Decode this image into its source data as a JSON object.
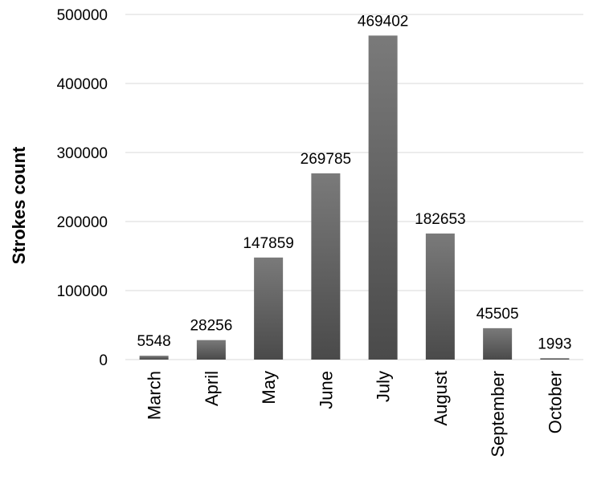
{
  "chart_data": {
    "type": "bar",
    "title": "",
    "xlabel": "",
    "ylabel": "Strokes count",
    "categories": [
      "March",
      "April",
      "May",
      "June",
      "July",
      "August",
      "September",
      "October"
    ],
    "values": [
      5548,
      28256,
      147859,
      269785,
      469402,
      182653,
      45505,
      1993
    ],
    "data_labels": [
      "5548",
      "28256",
      "147859",
      "269785",
      "469402",
      "182653",
      "45505",
      "1993"
    ],
    "ylim": [
      0,
      500000
    ],
    "yticks": [
      0,
      100000,
      200000,
      300000,
      400000,
      500000
    ],
    "ytick_labels": [
      "0",
      "100000",
      "200000",
      "300000",
      "400000",
      "500000"
    ],
    "grid": true,
    "legend": "none",
    "bar_color_top": "#7a7a7a",
    "bar_color_bottom": "#4a4a4a",
    "gridline_color": "#d9d9d9"
  }
}
